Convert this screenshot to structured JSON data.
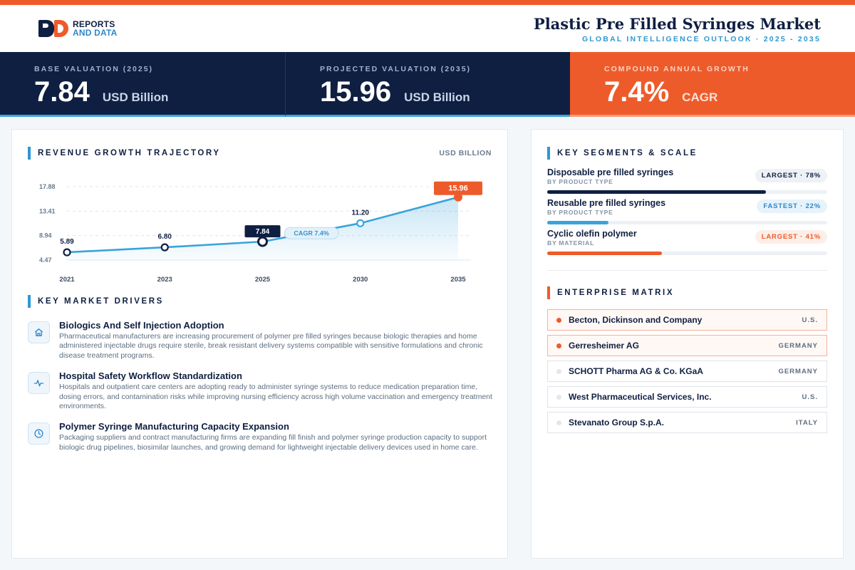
{
  "header": {
    "logo_line1": "REPORTS",
    "logo_line2": "AND DATA",
    "title": "Plastic Pre Filled Syringes Market",
    "subtitle": "GLOBAL INTELLIGENCE OUTLOOK  ·  2025 - 2035"
  },
  "kpis": [
    {
      "label": "BASE VALUATION (2025)",
      "value": "7.84",
      "unit": "USD Billion"
    },
    {
      "label": "PROJECTED VALUATION (2035)",
      "value": "15.96",
      "unit": "USD Billion"
    },
    {
      "label": "COMPOUND ANNUAL GROWTH",
      "value": "7.4%",
      "unit": "CAGR"
    }
  ],
  "revenue": {
    "section_title": "REVENUE GROWTH TRAJECTORY",
    "unit_label": "USD BILLION"
  },
  "chart_data": {
    "type": "area",
    "title": "REVENUE GROWTH TRAJECTORY",
    "ylabel": "USD BILLION",
    "x": [
      "2021",
      "2023",
      "2025",
      "2030",
      "2035"
    ],
    "values": [
      5.89,
      6.8,
      7.84,
      11.2,
      15.96
    ],
    "data_labels": [
      "5.89",
      "6.80",
      "7.84",
      "11.20",
      "15.96"
    ],
    "y_ticks": [
      "17.88",
      "13.41",
      "8.94",
      "4.47"
    ],
    "ylim": [
      4.47,
      17.88
    ],
    "annotation": "CAGR 7.4%",
    "highlight_base_index": 2,
    "highlight_end_index": 4,
    "grid": true,
    "colors": {
      "line": "#3aa3dc",
      "base": "#0f1f42",
      "end": "#ee5b2b"
    }
  },
  "drivers": {
    "section_title": "KEY MARKET DRIVERS",
    "items": [
      {
        "icon": "home-icon",
        "title": "Biologics And Self Injection Adoption",
        "desc": "Pharmaceutical manufacturers are increasing procurement of polymer pre filled syringes because biologic therapies and home administered injectable drugs require sterile, break resistant delivery systems compatible with sensitive formulations and chronic disease treatment programs."
      },
      {
        "icon": "pulse-icon",
        "title": "Hospital Safety Workflow Standardization",
        "desc": "Hospitals and outpatient care centers are adopting ready to administer syringe systems to reduce medication preparation time, dosing errors, and contamination risks while improving nursing efficiency across high volume vaccination and emergency treatment environments."
      },
      {
        "icon": "clock-icon",
        "title": "Polymer Syringe Manufacturing Capacity Expansion",
        "desc": "Packaging suppliers and contract manufacturing firms are expanding fill finish and polymer syringe production capacity to support biologic drug pipelines, biosimilar launches, and growing demand for lightweight injectable delivery devices used in home care."
      }
    ]
  },
  "segments": {
    "section_title": "KEY SEGMENTS & SCALE",
    "items": [
      {
        "name": "Disposable pre filled syringes",
        "category": "BY PRODUCT TYPE",
        "badge": "LARGEST · 78%",
        "share": 78,
        "color": "#0f1f42",
        "badge_bg": "#eef1f5",
        "badge_fg": "#0f1f42"
      },
      {
        "name": "Reusable pre filled syringes",
        "category": "BY PRODUCT TYPE",
        "badge": "FASTEST · 22%",
        "share": 22,
        "color": "#3aa3dc",
        "badge_bg": "#e6f3fb",
        "badge_fg": "#2f86c9"
      },
      {
        "name": "Cyclic olefin polymer",
        "category": "BY MATERIAL",
        "badge": "LARGEST · 41%",
        "share": 41,
        "color": "#ee5b2b",
        "badge_bg": "#fdeee8",
        "badge_fg": "#ee5b2b"
      }
    ]
  },
  "matrix": {
    "section_title": "ENTERPRISE MATRIX",
    "companies": [
      {
        "name": "Becton, Dickinson and Company",
        "country": "U.S.",
        "highlight": true
      },
      {
        "name": "Gerresheimer AG",
        "country": "GERMANY",
        "highlight": true
      },
      {
        "name": "SCHOTT Pharma AG & Co. KGaA",
        "country": "GERMANY",
        "highlight": false
      },
      {
        "name": "West Pharmaceutical Services, Inc.",
        "country": "U.S.",
        "highlight": false
      },
      {
        "name": "Stevanato Group S.p.A.",
        "country": "ITALY",
        "highlight": false
      }
    ]
  }
}
